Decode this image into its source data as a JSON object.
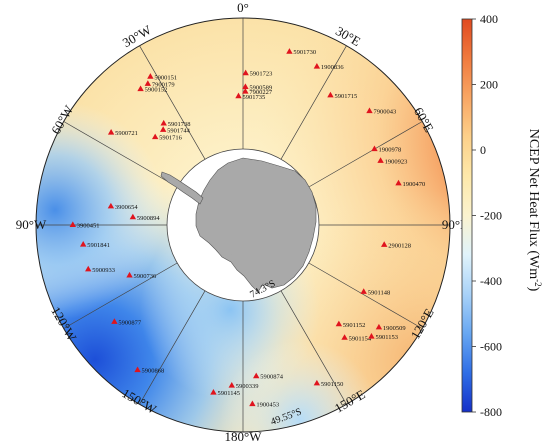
{
  "map": {
    "longitude_labels": [
      "0°",
      "30°E",
      "60°E",
      "90°E",
      "120°E",
      "150°E",
      "180°W",
      "150°W",
      "120°W",
      "90°W",
      "60°W",
      "30°W"
    ],
    "latitude_labels": [
      "74.3°S",
      "49.55°S"
    ],
    "land_color": "#a9a9a9",
    "marker_color": "#e0141e",
    "floats": [
      {
        "id": "5901730",
        "lon": 15,
        "lat": -51
      },
      {
        "id": "1900836",
        "lon": 25,
        "lat": -52
      },
      {
        "id": "5901715",
        "lon": 34,
        "lat": -56
      },
      {
        "id": "5901723",
        "lon": 1,
        "lat": -57
      },
      {
        "id": "5900589",
        "lon": 1,
        "lat": -60
      },
      {
        "id": "7900227",
        "lon": 1,
        "lat": -61
      },
      {
        "id": "5901735",
        "lon": -2,
        "lat": -62
      },
      {
        "id": "7900043",
        "lon": 48,
        "lat": -53
      },
      {
        "id": "1900978",
        "lon": 60,
        "lat": -57
      },
      {
        "id": "1900923",
        "lon": 65,
        "lat": -57
      },
      {
        "id": "1900470",
        "lon": 75,
        "lat": -55
      },
      {
        "id": "5900151",
        "lon": -32,
        "lat": -52
      },
      {
        "id": "7900179",
        "lon": -34,
        "lat": -53
      },
      {
        "id": "5900152",
        "lon": -37,
        "lat": -53
      },
      {
        "id": "5900721",
        "lon": -55,
        "lat": -55
      },
      {
        "id": "5901738",
        "lon": -38,
        "lat": -62
      },
      {
        "id": "5901744",
        "lon": -40,
        "lat": -63
      },
      {
        "id": "5901716",
        "lon": -45,
        "lat": -63
      },
      {
        "id": "3900654",
        "lon": -82,
        "lat": -61
      },
      {
        "id": "5900894",
        "lon": -86,
        "lat": -66
      },
      {
        "id": "3900451",
        "lon": -90,
        "lat": -53
      },
      {
        "id": "5901841",
        "lon": -97,
        "lat": -55
      },
      {
        "id": "5900933",
        "lon": -106,
        "lat": -55
      },
      {
        "id": "5900736",
        "lon": -114,
        "lat": -63
      },
      {
        "id": "5900877",
        "lon": -127,
        "lat": -55
      },
      {
        "id": "5900868",
        "lon": -144,
        "lat": -51
      },
      {
        "id": "5901145",
        "lon": -170,
        "lat": -53
      },
      {
        "id": "5900339",
        "lon": -176,
        "lat": -55
      },
      {
        "id": "1900453",
        "lon": 177,
        "lat": -51
      },
      {
        "id": "5900874",
        "lon": 175,
        "lat": -57
      },
      {
        "id": "5901150",
        "lon": 155,
        "lat": -52
      },
      {
        "id": "2900128",
        "lon": 98,
        "lat": -59
      },
      {
        "id": "5901148",
        "lon": 119,
        "lat": -60
      },
      {
        "id": "5901152",
        "lon": 136,
        "lat": -60
      },
      {
        "id": "5901154",
        "lon": 138,
        "lat": -57
      },
      {
        "id": "1900509",
        "lon": 127,
        "lat": -53
      },
      {
        "id": "5901153",
        "lon": 131,
        "lat": -53
      }
    ]
  },
  "colorbar": {
    "title": "NCEP Net Heat Flux (Wm",
    "title_sup": "-2",
    "title_end": ")",
    "ticks": [
      "400",
      "200",
      "0",
      "-200",
      "-400",
      "-600",
      "-800"
    ],
    "range": [
      -800,
      400
    ],
    "colors": [
      "#1530c8",
      "#2f6ee6",
      "#68a7f1",
      "#a9d2f8",
      "#e0f3fb",
      "#fbf3cf",
      "#fde8aa",
      "#fcd08a",
      "#f8a664",
      "#f07a3e",
      "#e04a20"
    ]
  }
}
